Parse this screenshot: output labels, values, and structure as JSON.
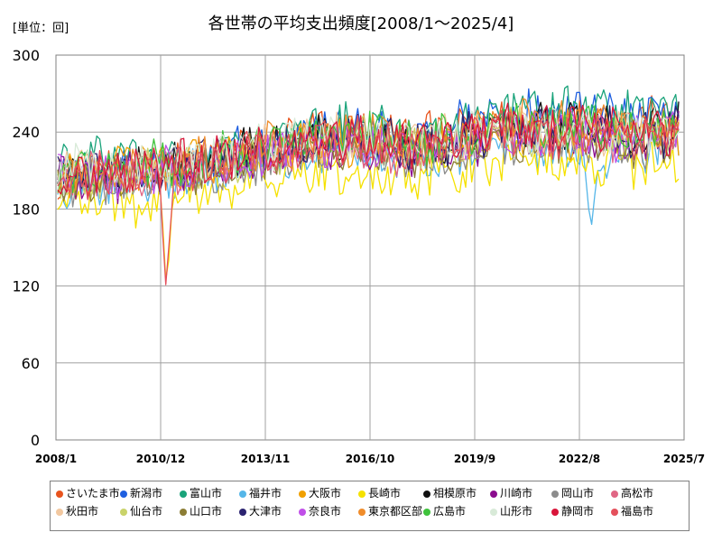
{
  "unit_label": "[単位：回]",
  "chart_data": {
    "type": "line",
    "title": "各世帯の平均支出頻度[2008/1～2025/4]",
    "xlabel": "",
    "ylabel": "",
    "ylim": [
      0,
      300
    ],
    "y_ticks": [
      0,
      60,
      120,
      180,
      240,
      300
    ],
    "x_range": [
      "2008-01",
      "2025-07"
    ],
    "x_ticks": [
      "2008/1",
      "2010/12",
      "2013/11",
      "2016/10",
      "2019/9",
      "2022/8",
      "2025/7"
    ],
    "grid": true,
    "legend_position": "bottom",
    "series": [
      {
        "name": "さいたま市",
        "color": "#e8541e",
        "base": [
          204,
          207,
          208,
          211,
          213,
          221,
          229,
          235,
          241,
          242,
          236,
          235,
          238,
          244,
          250,
          248,
          253,
          250,
          248,
          254
        ]
      },
      {
        "name": "新潟市",
        "color": "#1f5fe0",
        "base": [
          206,
          210,
          209,
          213,
          215,
          222,
          228,
          236,
          243,
          246,
          239,
          237,
          243,
          248,
          255,
          252,
          256,
          255,
          251,
          259
        ]
      },
      {
        "name": "富山市",
        "color": "#1aa37a",
        "base": [
          214,
          218,
          222,
          217,
          219,
          224,
          231,
          234,
          242,
          245,
          240,
          236,
          244,
          251,
          258,
          254,
          258,
          256,
          254,
          262
        ]
      },
      {
        "name": "福井市",
        "color": "#55b6e8",
        "base": [
          200,
          201,
          202,
          203,
          206,
          210,
          217,
          220,
          226,
          229,
          222,
          218,
          224,
          228,
          232,
          229,
          220,
          223,
          226,
          238
        ]
      },
      {
        "name": "大阪市",
        "color": "#f0a000",
        "base": [
          210,
          211,
          213,
          214,
          216,
          219,
          223,
          227,
          230,
          232,
          229,
          229,
          232,
          236,
          240,
          236,
          238,
          238,
          236,
          241
        ]
      },
      {
        "name": "長崎市",
        "color": "#f5e100",
        "base": [
          188,
          186,
          183,
          182,
          190,
          196,
          201,
          203,
          208,
          211,
          206,
          204,
          210,
          215,
          219,
          216,
          219,
          216,
          214,
          222
        ]
      },
      {
        "name": "相模原市",
        "color": "#111111",
        "base": [
          203,
          206,
          207,
          211,
          215,
          221,
          229,
          231,
          237,
          239,
          233,
          232,
          234,
          240,
          245,
          242,
          244,
          241,
          239,
          246
        ]
      },
      {
        "name": "川崎市",
        "color": "#8b0d8e",
        "base": [
          200,
          203,
          205,
          207,
          210,
          214,
          220,
          223,
          228,
          231,
          225,
          224,
          228,
          233,
          237,
          233,
          236,
          234,
          232,
          238
        ]
      },
      {
        "name": "岡山市",
        "color": "#8c8c8c",
        "base": [
          198,
          201,
          203,
          206,
          208,
          212,
          217,
          220,
          225,
          229,
          223,
          221,
          226,
          230,
          234,
          230,
          232,
          230,
          228,
          234
        ]
      },
      {
        "name": "高松市",
        "color": "#e06684",
        "base": [
          203,
          205,
          206,
          208,
          211,
          216,
          221,
          224,
          229,
          233,
          227,
          225,
          230,
          234,
          239,
          236,
          238,
          236,
          233,
          240
        ]
      },
      {
        "name": "秋田市",
        "color": "#f2c8a0",
        "base": [
          212,
          214,
          215,
          217,
          219,
          223,
          226,
          230,
          234,
          236,
          232,
          231,
          235,
          240,
          243,
          240,
          242,
          240,
          238,
          243
        ]
      },
      {
        "name": "仙台市",
        "color": "#c9d36a",
        "base": [
          204,
          207,
          208,
          211,
          214,
          218,
          224,
          227,
          232,
          236,
          230,
          229,
          233,
          238,
          242,
          239,
          241,
          238,
          236,
          242
        ]
      },
      {
        "name": "山口市",
        "color": "#8c7d35",
        "base": [
          201,
          204,
          205,
          208,
          210,
          214,
          219,
          222,
          227,
          231,
          225,
          223,
          227,
          232,
          236,
          233,
          235,
          233,
          230,
          237
        ]
      },
      {
        "name": "大津市",
        "color": "#2b2370",
        "base": [
          205,
          208,
          209,
          212,
          215,
          219,
          225,
          228,
          233,
          237,
          231,
          229,
          234,
          239,
          244,
          240,
          242,
          240,
          237,
          243
        ]
      },
      {
        "name": "奈良市",
        "color": "#c04fe8",
        "base": [
          202,
          205,
          207,
          210,
          212,
          216,
          222,
          225,
          230,
          234,
          228,
          226,
          231,
          236,
          240,
          237,
          239,
          236,
          234,
          240
        ]
      },
      {
        "name": "東京都区部",
        "color": "#f08c2a",
        "base": [
          205,
          208,
          209,
          213,
          216,
          221,
          228,
          231,
          236,
          240,
          234,
          232,
          237,
          242,
          246,
          243,
          245,
          243,
          240,
          246
        ]
      },
      {
        "name": "広島市",
        "color": "#3fc23c",
        "base": [
          207,
          210,
          211,
          214,
          217,
          222,
          228,
          231,
          236,
          240,
          234,
          232,
          236,
          241,
          246,
          242,
          244,
          242,
          239,
          245
        ]
      },
      {
        "name": "山形市",
        "color": "#d8ead8",
        "base": [
          209,
          212,
          213,
          215,
          218,
          222,
          227,
          230,
          235,
          238,
          233,
          231,
          236,
          240,
          245,
          241,
          243,
          241,
          238,
          244
        ]
      },
      {
        "name": "静岡市",
        "color": "#d9153a",
        "base": [
          206,
          209,
          210,
          213,
          216,
          220,
          226,
          229,
          234,
          237,
          232,
          230,
          235,
          240,
          244,
          241,
          243,
          241,
          238,
          244
        ]
      },
      {
        "name": "福島市",
        "color": "#e4505c",
        "base": [
          203,
          206,
          207,
          210,
          213,
          217,
          223,
          226,
          231,
          234,
          229,
          227,
          232,
          237,
          241,
          238,
          240,
          238,
          235,
          241
        ]
      }
    ]
  }
}
